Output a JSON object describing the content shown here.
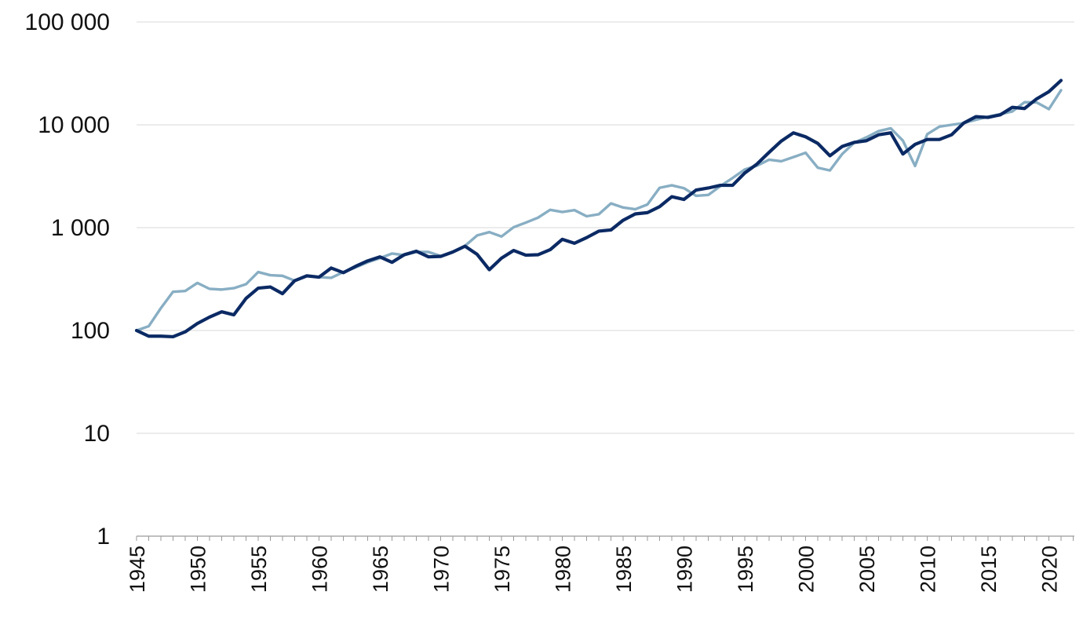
{
  "chart_data": {
    "type": "line",
    "yscale": "log",
    "ylim": [
      1,
      100000
    ],
    "xlim": [
      1945,
      2021
    ],
    "grid": true,
    "y_ticks": [
      1,
      10,
      100,
      1000,
      10000,
      100000
    ],
    "y_tick_labels": [
      "1",
      "10",
      "100",
      "1 000",
      "10 000",
      "100 000"
    ],
    "x_ticks": [
      1945,
      1950,
      1955,
      1960,
      1965,
      1970,
      1975,
      1980,
      1985,
      1990,
      1995,
      2000,
      2005,
      2010,
      2015,
      2020
    ],
    "x_tick_labels": [
      "1945",
      "1950",
      "1955",
      "1960",
      "1965",
      "1970",
      "1975",
      "1980",
      "1985",
      "1990",
      "1995",
      "2000",
      "2005",
      "2010",
      "2015",
      "2020"
    ],
    "x": [
      1945,
      1946,
      1947,
      1948,
      1949,
      1950,
      1951,
      1952,
      1953,
      1954,
      1955,
      1956,
      1957,
      1958,
      1959,
      1960,
      1961,
      1962,
      1963,
      1964,
      1965,
      1966,
      1967,
      1968,
      1969,
      1970,
      1971,
      1972,
      1973,
      1974,
      1975,
      1976,
      1977,
      1978,
      1979,
      1980,
      1981,
      1982,
      1983,
      1984,
      1985,
      1986,
      1987,
      1988,
      1989,
      1990,
      1991,
      1992,
      1993,
      1994,
      1995,
      1996,
      1997,
      1998,
      1999,
      2000,
      2001,
      2002,
      2003,
      2004,
      2005,
      2006,
      2007,
      2008,
      2009,
      2010,
      2011,
      2012,
      2013,
      2014,
      2015,
      2016,
      2017,
      2018,
      2019,
      2020,
      2021
    ],
    "series": [
      {
        "color": "#0b2a64",
        "values": [
          100,
          88,
          88,
          87,
          97,
          117,
          135,
          152,
          142,
          205,
          258,
          265,
          228,
          305,
          340,
          330,
          405,
          365,
          420,
          475,
          520,
          460,
          545,
          590,
          520,
          525,
          580,
          660,
          550,
          390,
          505,
          600,
          540,
          545,
          610,
          770,
          705,
          800,
          925,
          950,
          1180,
          1360,
          1400,
          1600,
          2000,
          1880,
          2320,
          2430,
          2580,
          2580,
          3400,
          4150,
          5400,
          6950,
          8350,
          7650,
          6600,
          5000,
          6150,
          6750,
          7000,
          8000,
          8350,
          5200,
          6450,
          7200,
          7200,
          8000,
          10400,
          12000,
          11800,
          12500,
          14800,
          14400,
          17900,
          21000,
          27000
        ]
      },
      {
        "color": "#88aec3",
        "values": [
          100,
          110,
          165,
          238,
          242,
          290,
          254,
          250,
          258,
          282,
          370,
          345,
          340,
          305,
          340,
          330,
          325,
          370,
          410,
          460,
          505,
          560,
          540,
          580,
          580,
          530,
          580,
          665,
          840,
          905,
          820,
          1010,
          1120,
          1250,
          1490,
          1420,
          1480,
          1290,
          1350,
          1720,
          1570,
          1510,
          1680,
          2440,
          2580,
          2420,
          2040,
          2080,
          2540,
          3040,
          3680,
          4000,
          4580,
          4420,
          4850,
          5350,
          3830,
          3600,
          5180,
          6700,
          7550,
          8680,
          9250,
          7020,
          3980,
          8100,
          9600,
          10000,
          10400,
          11200,
          12000,
          12700,
          13500,
          16600,
          16500,
          14200,
          21700
        ]
      }
    ]
  }
}
